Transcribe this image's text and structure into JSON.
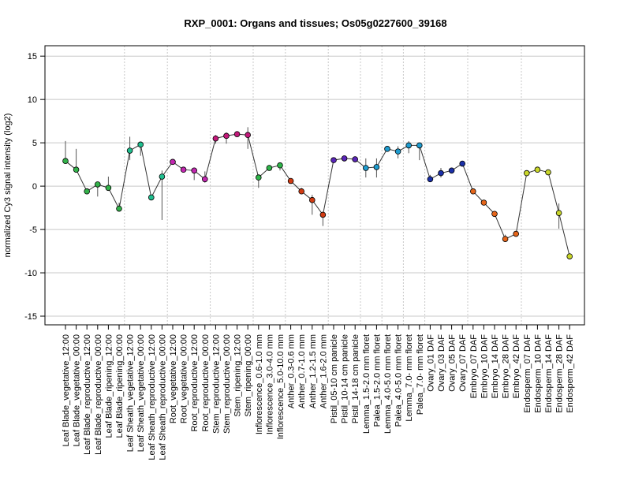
{
  "chart_data": {
    "type": "line",
    "title": "RXP_0001: Organs and tissues; Os05g0227600_39168",
    "xlabel": "",
    "ylabel": "normalized Cy3 signal intensity (log2)",
    "ylim": [
      -16,
      16.2
    ],
    "yticks": [
      -15,
      -10,
      -5,
      0,
      5,
      10,
      15
    ],
    "grid": true,
    "legend": "none",
    "categories": [
      "Leaf Blade_vegetative_12:00",
      "Leaf Blade_vegetative_00:00",
      "Leaf Blade_reproductive_12:00",
      "Leaf Blade_reproductive_00:00",
      "Leaf Blade_ripening_12:00",
      "Leaf Blade_ripening_00:00",
      "Leaf Sheath_vegetative_12:00",
      "Leaf Sheath_vegetative_00:00",
      "Leaf Sheath_reproductive_12:00",
      "Leaf Sheath_reproductive_00:00",
      "Root_vegetative_12:00",
      "Root_vegetative_00:00",
      "Root_reproductive_12:00",
      "Root_reproductive_00:00",
      "Stem_reproductive_12:00",
      "Stem_reproductive_00:00",
      "Stem_ripening_12:00",
      "Stem_ripening_00:00",
      "Inflorescence_0.6-1.0 mm",
      "Inflorescence_3.0-4.0 mm",
      "Inflorescence_5.0-10.0 mm",
      "Anther_0.3-0.6 mm",
      "Anther_0.7-1.0 mm",
      "Anther_1.2-1.5 mm",
      "Anther_1.6-2.0 mm",
      "Pistil_05-10 cm panicle",
      "Pistil_10-14 cm panicle",
      "Pistil_14-18 cm panicle",
      "Lemma_1.5-2.0 mm floret",
      "Palea_1.5-2.0 mm floret",
      "Lemma_4.0-5.0 mm floret",
      "Palea_4.0-5.0 mm floret",
      "Lemma_7.0- mm floret",
      "Palea_7.0- mm floret",
      "Ovary_01 DAF",
      "Ovary_03 DAF",
      "Ovary_05 DAF",
      "Ovary_07 DAF",
      "Embryo_07 DAF",
      "Embryo_10 DAF",
      "Embryo_14 DAF",
      "Embryo_28 DAF",
      "Embryo_42 DAF",
      "Endosperm_07 DAF",
      "Endosperm_10 DAF",
      "Endosperm_14 DAF",
      "Endosperm_28 DAF",
      "Endosperm_42 DAF"
    ],
    "values": [
      2.9,
      1.9,
      -0.6,
      0.2,
      -0.2,
      -2.6,
      4.1,
      4.8,
      -1.3,
      1.1,
      2.8,
      1.9,
      1.8,
      0.8,
      5.5,
      5.8,
      6.0,
      5.9,
      1.0,
      2.1,
      2.4,
      0.6,
      -0.6,
      -1.6,
      -3.3,
      3.0,
      3.2,
      3.1,
      2.1,
      2.2,
      4.3,
      4.0,
      4.7,
      4.7,
      0.8,
      1.5,
      1.8,
      2.6,
      -0.6,
      -1.9,
      -3.2,
      -6.1,
      -5.5,
      1.5,
      1.9,
      1.6,
      -3.1,
      -8.1
    ],
    "error_bars": [
      [
        2.9,
        5.2
      ],
      [
        1.9,
        4.3
      ],
      [
        -0.9,
        -0.4
      ],
      [
        -1.2,
        0.2
      ],
      [
        -0.2,
        1.1
      ],
      [
        -2.6,
        -1.9
      ],
      [
        3.0,
        5.7
      ],
      [
        3.5,
        4.8
      ],
      [
        -1.3,
        -1.3
      ],
      [
        -3.9,
        1.8
      ],
      [
        2.8,
        2.8
      ],
      [
        1.9,
        1.9
      ],
      [
        0.7,
        1.8
      ],
      [
        0.4,
        1.7
      ],
      [
        4.9,
        5.9
      ],
      [
        4.9,
        6.2
      ],
      [
        5.7,
        6.3
      ],
      [
        4.3,
        6.8
      ],
      [
        -0.2,
        1.0
      ],
      [
        2.1,
        2.1
      ],
      [
        1.8,
        2.7
      ],
      [
        0.6,
        0.9
      ],
      [
        -0.6,
        -0.2
      ],
      [
        -3.3,
        -1.0
      ],
      [
        -4.6,
        -3.3
      ],
      [
        3.0,
        3.3
      ],
      [
        3.2,
        3.2
      ],
      [
        3.1,
        3.1
      ],
      [
        1.0,
        3.2
      ],
      [
        1.0,
        3.2
      ],
      [
        4.3,
        4.3
      ],
      [
        3.2,
        4.6
      ],
      [
        3.8,
        5.2
      ],
      [
        3.0,
        5.0
      ],
      [
        0.5,
        1.3
      ],
      [
        1.0,
        2.1
      ],
      [
        1.8,
        1.8
      ],
      [
        2.6,
        2.6
      ],
      [
        -0.6,
        -0.6
      ],
      [
        -1.9,
        -1.9
      ],
      [
        -3.2,
        -3.2
      ],
      [
        -6.1,
        -5.6
      ],
      [
        -5.5,
        -5.5
      ],
      [
        1.3,
        1.6
      ],
      [
        1.9,
        1.9
      ],
      [
        1.6,
        1.8
      ],
      [
        -4.9,
        -2.0
      ],
      [
        -8.1,
        -8.1
      ]
    ],
    "colors": [
      "#33b24a",
      "#33b24a",
      "#33b24a",
      "#33b24a",
      "#33b24a",
      "#33b24a",
      "#1fbf8f",
      "#1fbf8f",
      "#1fbf8f",
      "#1fbf8f",
      "#c227b0",
      "#c227b0",
      "#c227b0",
      "#c227b0",
      "#c3197a",
      "#c3197a",
      "#c3197a",
      "#c3197a",
      "#2fb54a",
      "#2fb54a",
      "#2fb54a",
      "#d13b12",
      "#d13b12",
      "#d13b12",
      "#d13b12",
      "#5a25b8",
      "#5a25b8",
      "#5a25b8",
      "#1e9ccf",
      "#1e9ccf",
      "#1e9ccf",
      "#1e9ccf",
      "#1e9ccf",
      "#1e9ccf",
      "#1a2fa8",
      "#1a2fa8",
      "#1a2fa8",
      "#1a2fa8",
      "#e5651a",
      "#e5651a",
      "#e5651a",
      "#e5651a",
      "#e5651a",
      "#c9d62a",
      "#c9d62a",
      "#c9d62a",
      "#c9d62a",
      "#c9d62a"
    ],
    "group_separators_after": [
      5,
      9,
      13,
      17,
      20,
      24,
      27,
      29,
      31,
      33,
      37,
      42
    ]
  }
}
